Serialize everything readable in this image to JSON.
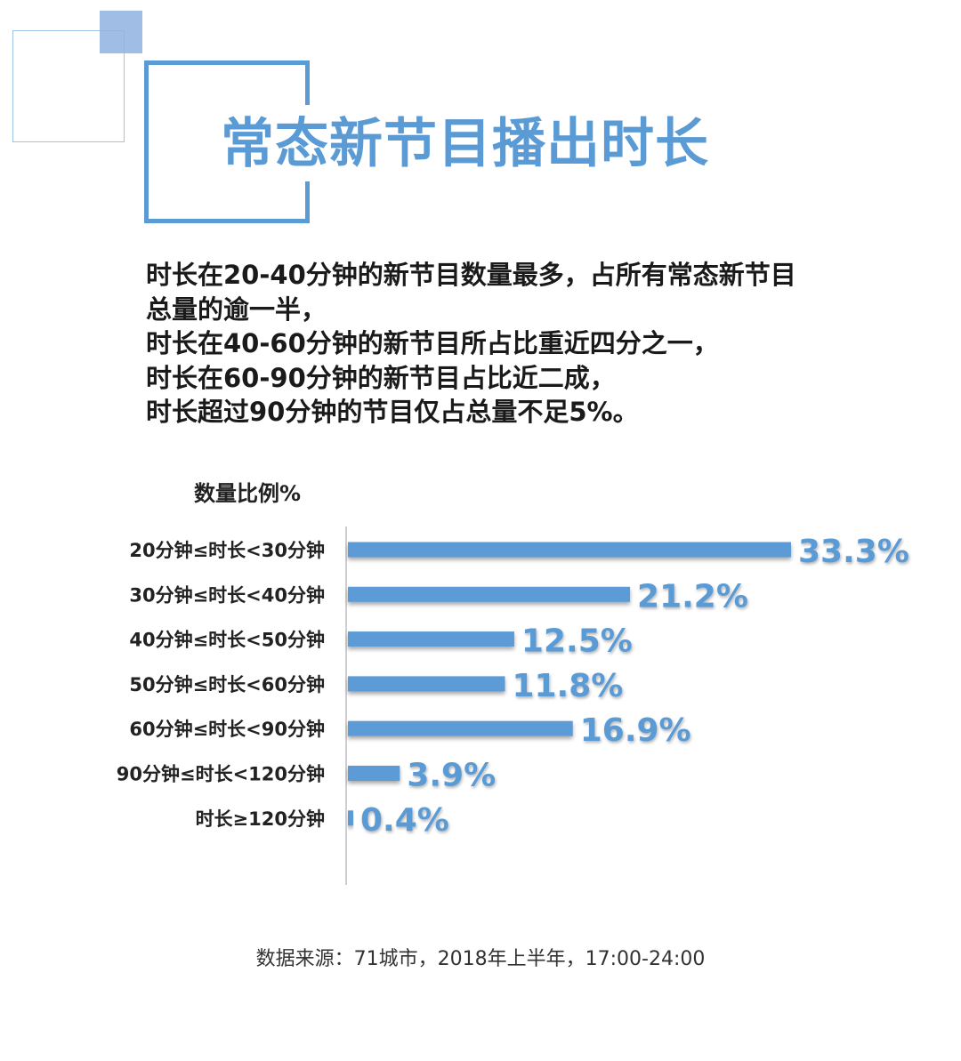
{
  "title": "常态新节目播出时长",
  "summary": {
    "lines": [
      "时长在20-40分钟的新节目数量最多，占所有常态新节目",
      "总量的逾一半，",
      "时长在40-60分钟的新节目所占比重近四分之一，",
      "时长在60-90分钟的新节目占比近二成，",
      "时长超过90分钟的节目仅占总量不足5%。"
    ]
  },
  "source": "数据来源：71城市，2018年上半年，17:00-24:00",
  "colors": {
    "accent": "#5a9bd5",
    "bar": "#5b9bd5",
    "deco": "#8fb3e0"
  },
  "chart_data": {
    "type": "bar",
    "orientation": "horizontal",
    "ylabel": "数量比例%",
    "categories": [
      "20分钟≤时长<30分钟",
      "30分钟≤时长<40分钟",
      "40分钟≤时长<50分钟",
      "50分钟≤时长<60分钟",
      "60分钟≤时长<90分钟",
      "90分钟≤时长<120分钟",
      "时长≥120分钟"
    ],
    "values": [
      33.3,
      21.2,
      12.5,
      11.8,
      16.9,
      3.9,
      0.4
    ],
    "value_labels": [
      "33.3%",
      "21.2%",
      "12.5%",
      "11.8%",
      "16.9%",
      "3.9%",
      "0.4%"
    ],
    "xlim": [
      0,
      33.3
    ],
    "grid": false,
    "legend": "none"
  }
}
